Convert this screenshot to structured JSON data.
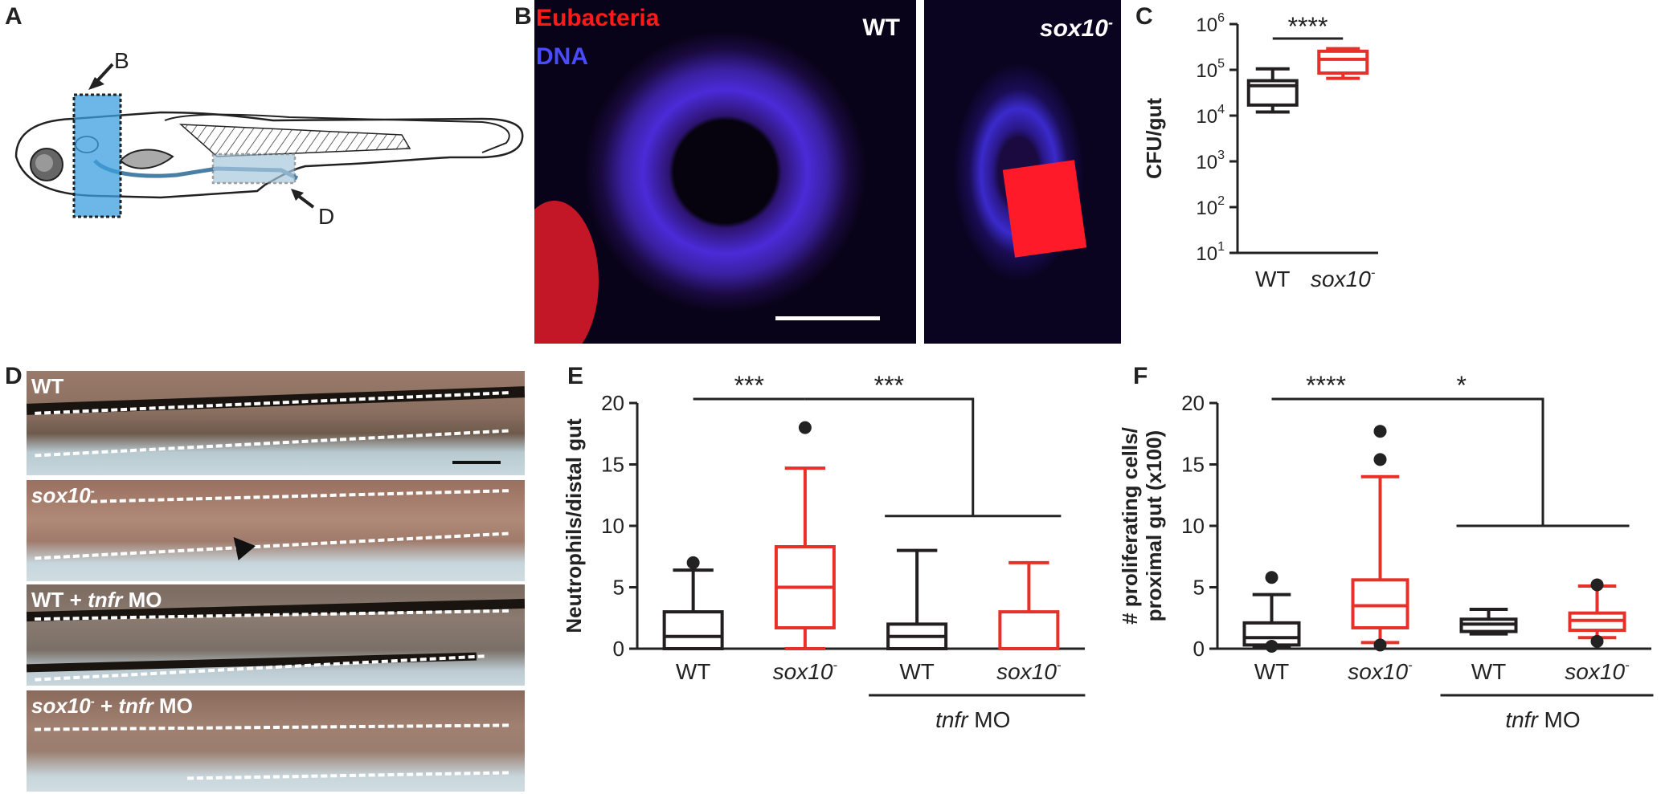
{
  "panel_letters": {
    "A": "A",
    "B": "B",
    "C": "C",
    "D": "D",
    "E": "E",
    "F": "F"
  },
  "panelA": {
    "label_B": "B",
    "label_D": "D"
  },
  "panelB": {
    "stain_red": "Eubacteria",
    "stain_blue": "DNA",
    "left_label": "WT",
    "right_label_main": "sox10",
    "right_label_sup": "-"
  },
  "panelD": {
    "rows": [
      {
        "main": "WT",
        "sup": "",
        "rest": "",
        "italic_part": "",
        "tail": ""
      },
      {
        "main": "sox10",
        "sup": "-",
        "rest": "",
        "italic_part": "",
        "tail": ""
      },
      {
        "main": "WT + ",
        "sup": "",
        "rest": "",
        "italic_part": "tnfr",
        "tail": " MO"
      },
      {
        "main": "sox10",
        "sup": "-",
        "rest": " + ",
        "italic_part": "tnfr",
        "tail": " MO"
      }
    ]
  },
  "colors": {
    "wt": "#231f20",
    "sox10": "#e8302a",
    "red_stain": "#ff1a1a",
    "blue_stain": "#3a3aff"
  },
  "chart_data": [
    {
      "id": "C",
      "type": "box",
      "ylabel": "CFU/gut",
      "yscale": "log",
      "ylim": [
        10,
        1000000
      ],
      "yticks": [
        {
          "base": "10",
          "exp": "1"
        },
        {
          "base": "10",
          "exp": "2"
        },
        {
          "base": "10",
          "exp": "3"
        },
        {
          "base": "10",
          "exp": "4"
        },
        {
          "base": "10",
          "exp": "5"
        },
        {
          "base": "10",
          "exp": "6"
        }
      ],
      "categories": [
        {
          "main": "WT",
          "sup": ""
        },
        {
          "main": "sox10",
          "sup": "-"
        }
      ],
      "boxes": [
        {
          "min": 12000,
          "q1": 17000,
          "median": 45000,
          "q3": 58000,
          "max": 105000,
          "outliers": [],
          "color": "wt"
        },
        {
          "min": 65000,
          "q1": 85000,
          "median": 170000,
          "q3": 255000,
          "max": 290000,
          "outliers": [],
          "color": "sox10"
        }
      ],
      "significance": [
        {
          "label": "****",
          "from": 0,
          "to": 1
        }
      ]
    },
    {
      "id": "E",
      "type": "box",
      "ylabel": "Neutrophils/distal gut",
      "yscale": "linear",
      "ylim": [
        0,
        20
      ],
      "yticks": [
        "0",
        "5",
        "10",
        "15",
        "20"
      ],
      "categories": [
        {
          "main": "WT",
          "sup": ""
        },
        {
          "main": "sox10",
          "sup": "-"
        },
        {
          "main": "WT",
          "sup": ""
        },
        {
          "main": "sox10",
          "sup": "-"
        }
      ],
      "group_label": {
        "italic": "tnfr",
        "rest": " MO"
      },
      "boxes": [
        {
          "min": 0,
          "q1": 0,
          "median": 1,
          "q3": 3,
          "max": 6.4,
          "outliers": [
            7
          ],
          "color": "wt"
        },
        {
          "min": 0,
          "q1": 1.7,
          "median": 5,
          "q3": 8.3,
          "max": 14.7,
          "outliers": [
            18
          ],
          "color": "sox10"
        },
        {
          "min": 0,
          "q1": 0,
          "median": 1,
          "q3": 2,
          "max": 8,
          "outliers": [],
          "color": "wt"
        },
        {
          "min": 0,
          "q1": 0,
          "median": 0,
          "q3": 3,
          "max": 7,
          "outliers": [],
          "color": "sox10"
        }
      ],
      "significance": [
        {
          "label": "***",
          "from": 0,
          "to": 1
        },
        {
          "label": "***",
          "from": 1,
          "to": "group"
        }
      ],
      "group_bracket_y": 10.8
    },
    {
      "id": "F",
      "type": "box",
      "ylabel_line1": "# proliferating cells/",
      "ylabel_line2": "proximal gut (x100)",
      "yscale": "linear",
      "ylim": [
        0,
        20
      ],
      "yticks": [
        "0",
        "5",
        "10",
        "15",
        "20"
      ],
      "categories": [
        {
          "main": "WT",
          "sup": ""
        },
        {
          "main": "sox10",
          "sup": "-"
        },
        {
          "main": "WT",
          "sup": ""
        },
        {
          "main": "sox10",
          "sup": "-"
        }
      ],
      "group_label": {
        "italic": "tnfr",
        "rest": " MO"
      },
      "boxes": [
        {
          "min": 0.2,
          "q1": 0.3,
          "median": 0.9,
          "q3": 2.1,
          "max": 4.4,
          "outliers": [
            5.8,
            0.2
          ],
          "color": "wt"
        },
        {
          "min": 0.5,
          "q1": 1.7,
          "median": 3.5,
          "q3": 5.6,
          "max": 14,
          "outliers": [
            17.7,
            15.4,
            0.3
          ],
          "color": "sox10"
        },
        {
          "min": 1.2,
          "q1": 1.4,
          "median": 2,
          "q3": 2.4,
          "max": 3.2,
          "outliers": [],
          "color": "wt"
        },
        {
          "min": 0.9,
          "q1": 1.5,
          "median": 2.3,
          "q3": 2.9,
          "max": 5.1,
          "outliers": [
            5.2,
            0.6
          ],
          "color": "sox10"
        }
      ],
      "significance": [
        {
          "label": "****",
          "from": 0,
          "to": 1
        },
        {
          "label": "*",
          "from": 1,
          "to": "group"
        }
      ],
      "group_bracket_y": 10
    }
  ]
}
